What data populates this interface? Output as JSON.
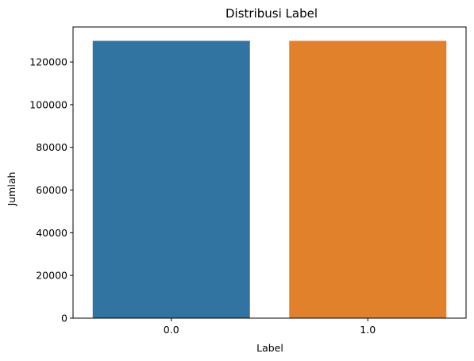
{
  "chart_data": {
    "type": "bar",
    "title": "Distribusi Label",
    "xlabel": "Label",
    "ylabel": "Jumlah",
    "categories": [
      "0.0",
      "1.0"
    ],
    "values": [
      129900,
      129900
    ],
    "colors": [
      "#3274a1",
      "#e1812c"
    ],
    "ylim": [
      0,
      136395
    ],
    "yticks": [
      0,
      20000,
      40000,
      60000,
      80000,
      100000,
      120000
    ],
    "grid": false,
    "legend": "none"
  }
}
